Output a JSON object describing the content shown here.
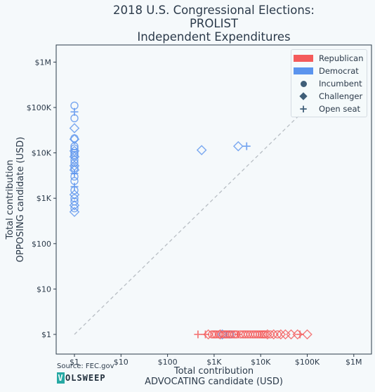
{
  "title_lines": [
    "2018 U.S. Congressional Elections:",
    "PROLIST",
    "Independent Expenditures"
  ],
  "source": "Source: FEC.gov",
  "brand": {
    "first": "V",
    "rest": "OLSWEEP"
  },
  "colors": {
    "Republican": "#f45b5b",
    "Democrat": "#5b94ee",
    "background": "#f5f9fb",
    "axes": "#2b3a4a"
  },
  "legend": [
    {
      "label": "Republican",
      "kind": "patch",
      "color": "#f45b5b"
    },
    {
      "label": "Democrat",
      "kind": "patch",
      "color": "#5b94ee"
    },
    {
      "label": "Incumbent",
      "kind": "circle"
    },
    {
      "label": "Challenger",
      "kind": "diamond"
    },
    {
      "label": "Open seat",
      "kind": "plus"
    }
  ],
  "chart_data": {
    "type": "scatter",
    "x_scale": "log",
    "y_scale": "log",
    "xlabel": "Total contribution\nADVOCATING candidate (USD)",
    "ylabel": "Total contribution\nOPPOSING candidate (USD)",
    "x_ticks": [
      {
        "value": 1,
        "label": "$1"
      },
      {
        "value": 10,
        "label": "$10"
      },
      {
        "value": 100,
        "label": "$100"
      },
      {
        "value": 1000,
        "label": "$1K"
      },
      {
        "value": 10000,
        "label": "$10K"
      },
      {
        "value": 100000,
        "label": "$100K"
      },
      {
        "value": 1000000,
        "label": "$1M"
      }
    ],
    "y_ticks": [
      {
        "value": 1,
        "label": "$1"
      },
      {
        "value": 10,
        "label": "$10"
      },
      {
        "value": 100,
        "label": "$100"
      },
      {
        "value": 1000,
        "label": "$1K"
      },
      {
        "value": 10000,
        "label": "$10K"
      },
      {
        "value": 100000,
        "label": "$100K"
      },
      {
        "value": 1000000,
        "label": "$1M"
      }
    ],
    "xlim": [
      0.55,
      1800000
    ],
    "ylim": [
      0.6,
      3000000
    ],
    "diagonal": {
      "from": 1,
      "to": 110000,
      "style": "dashed"
    },
    "legend_position": "upper right",
    "grid": false,
    "series": [
      {
        "name": "Democrat",
        "color": "#5b94ee",
        "points": [
          {
            "x": 1,
            "y": 110000,
            "shape": "circle"
          },
          {
            "x": 1,
            "y": 80000,
            "shape": "plus"
          },
          {
            "x": 1,
            "y": 58000,
            "shape": "circle"
          },
          {
            "x": 1,
            "y": 35000,
            "shape": "diamond"
          },
          {
            "x": 1,
            "y": 21000,
            "shape": "circle"
          },
          {
            "x": 1,
            "y": 20000,
            "shape": "diamond"
          },
          {
            "x": 1,
            "y": 14000,
            "shape": "circle"
          },
          {
            "x": 1,
            "y": 12500,
            "shape": "circle"
          },
          {
            "x": 1,
            "y": 11000,
            "shape": "diamond"
          },
          {
            "x": 1,
            "y": 10000,
            "shape": "circle"
          },
          {
            "x": 1,
            "y": 9000,
            "shape": "circle"
          },
          {
            "x": 1,
            "y": 8200,
            "shape": "diamond"
          },
          {
            "x": 1,
            "y": 7000,
            "shape": "circle"
          },
          {
            "x": 1,
            "y": 6000,
            "shape": "circle"
          },
          {
            "x": 1,
            "y": 5200,
            "shape": "diamond"
          },
          {
            "x": 1,
            "y": 4600,
            "shape": "circle"
          },
          {
            "x": 1,
            "y": 4200,
            "shape": "diamond"
          },
          {
            "x": 1,
            "y": 3500,
            "shape": "plus"
          },
          {
            "x": 1,
            "y": 3000,
            "shape": "circle"
          },
          {
            "x": 1,
            "y": 2400,
            "shape": "circle"
          },
          {
            "x": 1,
            "y": 1800,
            "shape": "plus"
          },
          {
            "x": 1,
            "y": 1500,
            "shape": "circle"
          },
          {
            "x": 1,
            "y": 1200,
            "shape": "diamond"
          },
          {
            "x": 1,
            "y": 1000,
            "shape": "circle"
          },
          {
            "x": 1,
            "y": 850,
            "shape": "circle"
          },
          {
            "x": 1,
            "y": 700,
            "shape": "diamond"
          },
          {
            "x": 1,
            "y": 600,
            "shape": "circle"
          },
          {
            "x": 1,
            "y": 500,
            "shape": "diamond"
          },
          {
            "x": 540,
            "y": 11500,
            "shape": "diamond"
          },
          {
            "x": 3300,
            "y": 14000,
            "shape": "diamond"
          },
          {
            "x": 5000,
            "y": 14000,
            "shape": "plus"
          },
          {
            "x": 1500,
            "y": 1,
            "shape": "diamond"
          },
          {
            "x": 2200,
            "y": 1,
            "shape": "circle"
          }
        ]
      },
      {
        "name": "Republican",
        "color": "#f45b5b",
        "points": [
          {
            "x": 450,
            "y": 1,
            "shape": "plus"
          },
          {
            "x": 650,
            "y": 1,
            "shape": "plus"
          },
          {
            "x": 750,
            "y": 1,
            "shape": "diamond"
          },
          {
            "x": 900,
            "y": 1,
            "shape": "circle"
          },
          {
            "x": 1000,
            "y": 1,
            "shape": "circle"
          },
          {
            "x": 1100,
            "y": 1,
            "shape": "circle"
          },
          {
            "x": 1250,
            "y": 1,
            "shape": "circle"
          },
          {
            "x": 1350,
            "y": 1,
            "shape": "diamond"
          },
          {
            "x": 1600,
            "y": 1,
            "shape": "circle"
          },
          {
            "x": 1750,
            "y": 1,
            "shape": "circle"
          },
          {
            "x": 1900,
            "y": 1,
            "shape": "circle"
          },
          {
            "x": 2100,
            "y": 1,
            "shape": "circle"
          },
          {
            "x": 2400,
            "y": 1,
            "shape": "circle"
          },
          {
            "x": 2700,
            "y": 1,
            "shape": "circle"
          },
          {
            "x": 3000,
            "y": 1,
            "shape": "circle"
          },
          {
            "x": 3300,
            "y": 1,
            "shape": "plus"
          },
          {
            "x": 3700,
            "y": 1,
            "shape": "circle"
          },
          {
            "x": 4200,
            "y": 1,
            "shape": "circle"
          },
          {
            "x": 4700,
            "y": 1,
            "shape": "circle"
          },
          {
            "x": 5300,
            "y": 1,
            "shape": "circle"
          },
          {
            "x": 6000,
            "y": 1,
            "shape": "circle"
          },
          {
            "x": 6800,
            "y": 1,
            "shape": "circle"
          },
          {
            "x": 7600,
            "y": 1,
            "shape": "circle"
          },
          {
            "x": 8500,
            "y": 1,
            "shape": "circle"
          },
          {
            "x": 9500,
            "y": 1,
            "shape": "circle"
          },
          {
            "x": 10500,
            "y": 1,
            "shape": "circle"
          },
          {
            "x": 11500,
            "y": 1,
            "shape": "circle"
          },
          {
            "x": 12500,
            "y": 1,
            "shape": "circle"
          },
          {
            "x": 14000,
            "y": 1,
            "shape": "diamond"
          },
          {
            "x": 16000,
            "y": 1,
            "shape": "circle"
          },
          {
            "x": 19000,
            "y": 1,
            "shape": "diamond"
          },
          {
            "x": 23000,
            "y": 1,
            "shape": "circle"
          },
          {
            "x": 27000,
            "y": 1,
            "shape": "diamond"
          },
          {
            "x": 34000,
            "y": 1,
            "shape": "diamond"
          },
          {
            "x": 45000,
            "y": 1,
            "shape": "diamond"
          },
          {
            "x": 62000,
            "y": 1,
            "shape": "diamond"
          },
          {
            "x": 70000,
            "y": 1,
            "shape": "plus"
          },
          {
            "x": 100000,
            "y": 1,
            "shape": "diamond"
          }
        ]
      }
    ]
  }
}
